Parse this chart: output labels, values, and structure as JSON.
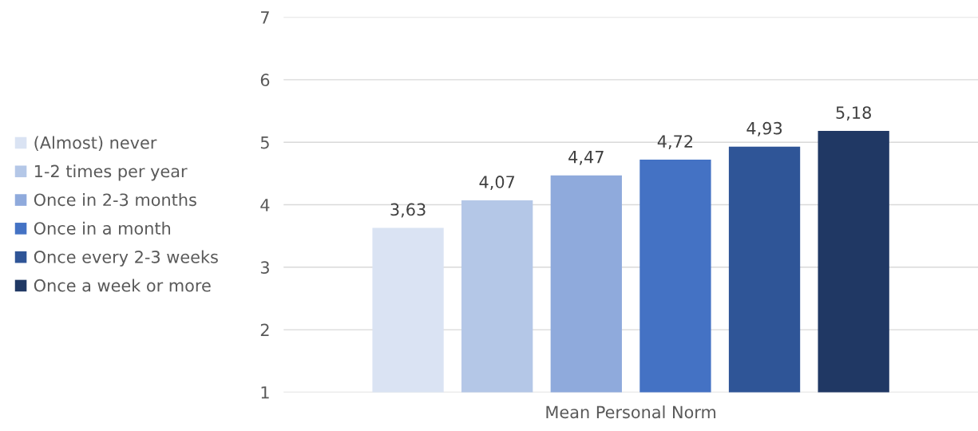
{
  "chart_data": {
    "type": "bar",
    "categories": [
      "Mean Personal Norm"
    ],
    "series": [
      {
        "name": "(Almost) never",
        "color": "#dae3f3",
        "values": [
          3.63
        ],
        "value_labels": [
          "3,63"
        ]
      },
      {
        "name": "1-2 times per year",
        "color": "#b4c7e7",
        "values": [
          4.07
        ],
        "value_labels": [
          "4,07"
        ]
      },
      {
        "name": "Once in 2-3 months",
        "color": "#8faadc",
        "values": [
          4.47
        ],
        "value_labels": [
          "4,47"
        ]
      },
      {
        "name": "Once in a month",
        "color": "#4472c4",
        "values": [
          4.72
        ],
        "value_labels": [
          "4,72"
        ]
      },
      {
        "name": "Once every 2-3 weeks",
        "color": "#2f5597",
        "values": [
          4.93
        ],
        "value_labels": [
          "4,93"
        ]
      },
      {
        "name": "Once a week or more",
        "color": "#203864",
        "values": [
          5.18
        ],
        "value_labels": [
          "5,18"
        ]
      }
    ],
    "ylim": [
      1,
      7
    ],
    "yticks": [
      1,
      2,
      3,
      4,
      5,
      6,
      7
    ],
    "grid": "y",
    "legend": "left"
  }
}
